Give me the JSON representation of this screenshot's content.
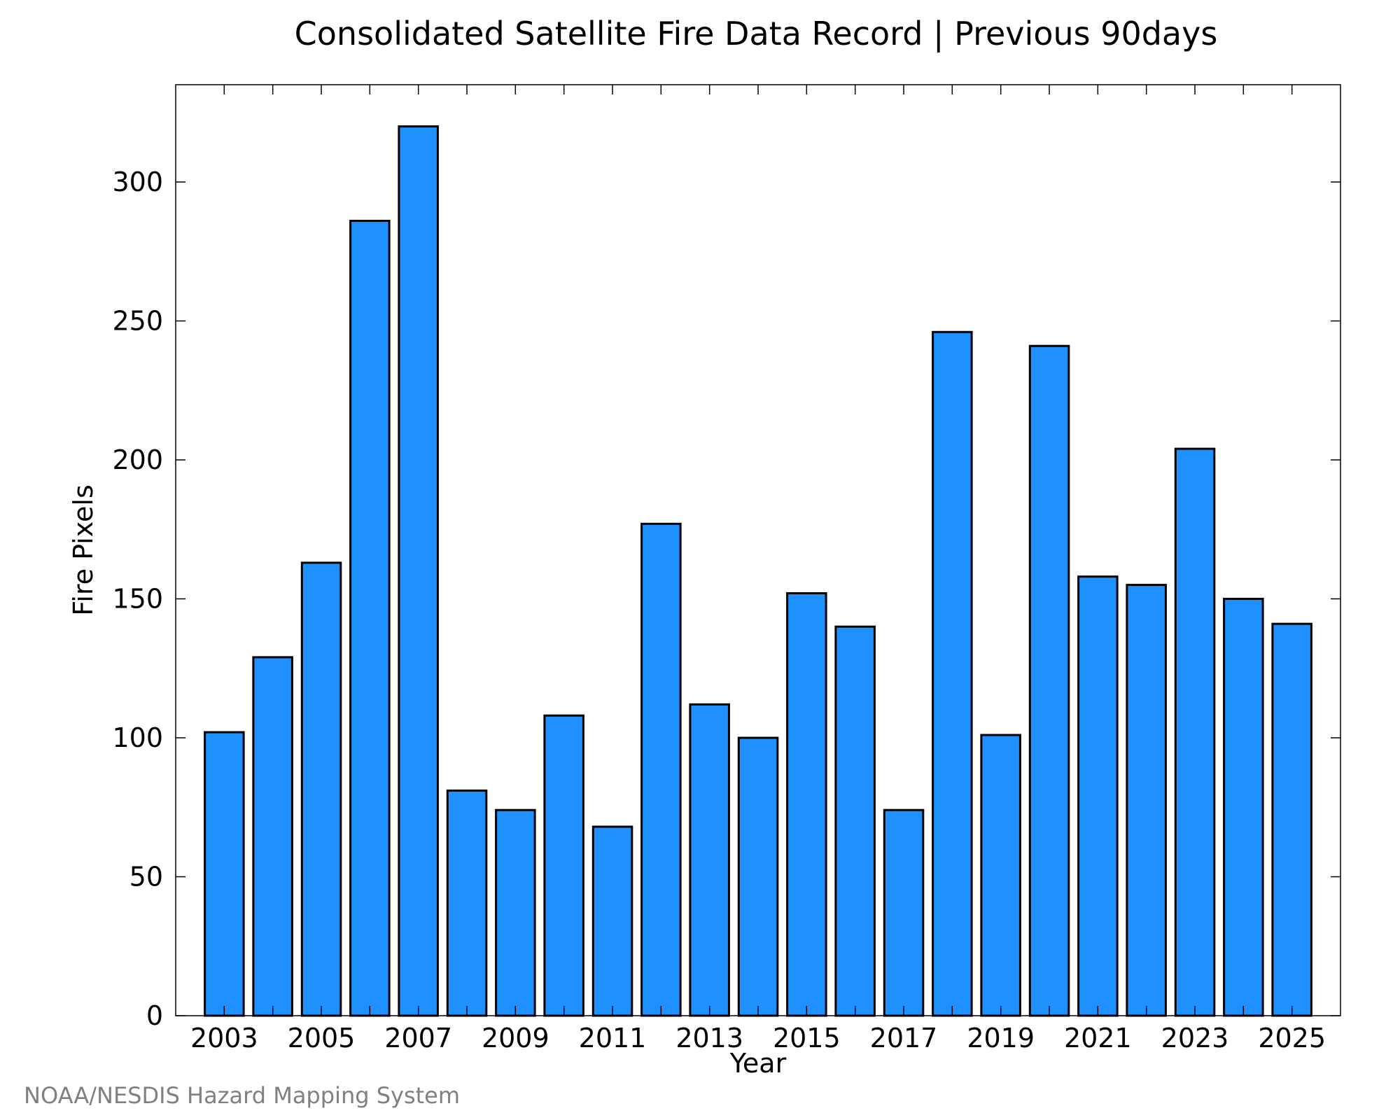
{
  "chart_data": {
    "type": "bar",
    "title": "Consolidated Satellite Fire Data Record | Previous 90days",
    "xlabel": "Year",
    "ylabel": "Fire Pixels",
    "categories": [
      "2003",
      "2004",
      "2005",
      "2006",
      "2007",
      "2008",
      "2009",
      "2010",
      "2011",
      "2012",
      "2013",
      "2014",
      "2015",
      "2016",
      "2017",
      "2018",
      "2019",
      "2020",
      "2021",
      "2022",
      "2023",
      "2024",
      "2025"
    ],
    "values": [
      102,
      129,
      163,
      286,
      320,
      81,
      74,
      108,
      68,
      177,
      112,
      100,
      152,
      140,
      74,
      246,
      101,
      241,
      158,
      155,
      204,
      150,
      141
    ],
    "xlim": [
      2002.0,
      2026.0
    ],
    "ylim": [
      0,
      335
    ],
    "x_tick_labels": [
      "2003",
      "2005",
      "2007",
      "2009",
      "2011",
      "2013",
      "2015",
      "2017",
      "2019",
      "2021",
      "2023",
      "2025"
    ],
    "y_ticks": [
      0,
      50,
      100,
      150,
      200,
      250,
      300
    ],
    "grid": false,
    "legend": "none",
    "bar_color": "#1e90ff",
    "bar_edge_color": "#000000"
  },
  "credit": "NOAA/NESDIS Hazard Mapping System"
}
